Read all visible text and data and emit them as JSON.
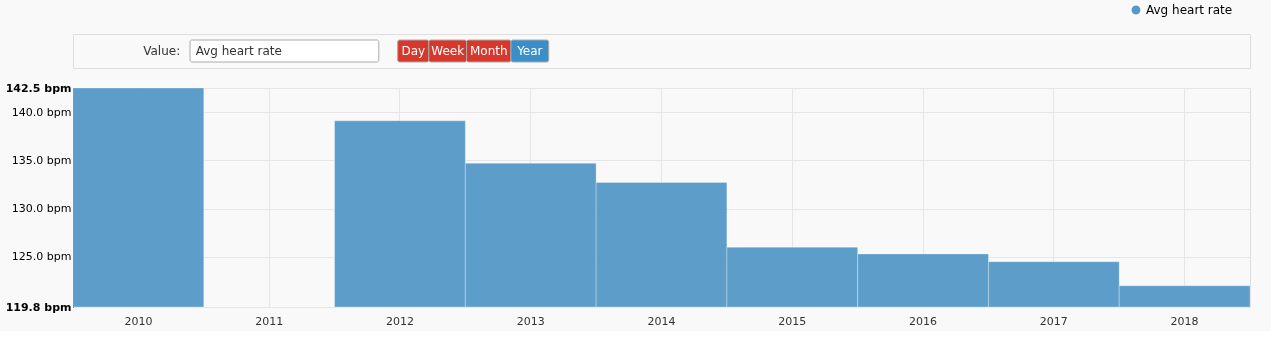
{
  "chart_data": {
    "type": "bar",
    "categories": [
      "2010",
      "2011",
      "2012",
      "2013",
      "2014",
      "2015",
      "2016",
      "2017",
      "2018"
    ],
    "series": [
      {
        "name": "Avg heart rate",
        "color": "#5599c7",
        "values": [
          142.5,
          null,
          139.1,
          134.7,
          132.7,
          126.0,
          125.3,
          124.5,
          122.0
        ]
      }
    ],
    "ylim": [
      119.8,
      142.5
    ],
    "yticks": [
      {
        "value": 119.8,
        "label": "119.8 bpm"
      },
      {
        "value": 125.0,
        "label": "125.0 bpm"
      },
      {
        "value": 130.0,
        "label": "130.0 bpm"
      },
      {
        "value": 135.0,
        "label": "135.0 bpm"
      },
      {
        "value": 140.0,
        "label": "140.0 bpm"
      },
      {
        "value": 142.5,
        "label": "142.5 bpm"
      }
    ],
    "grid": true,
    "legend": "top right",
    "annotations": [
      "Value:",
      "Avg heart rate",
      "Day",
      "Week",
      "Month",
      "Year"
    ]
  }
}
